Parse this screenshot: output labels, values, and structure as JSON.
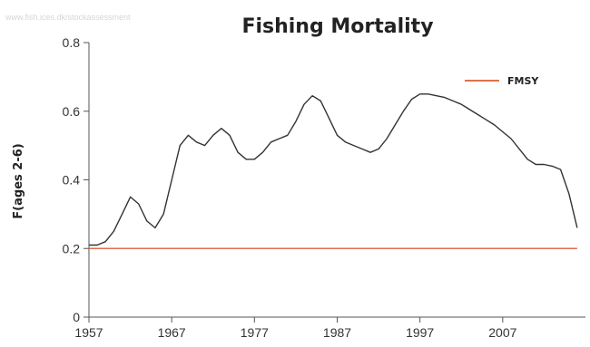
{
  "watermark": "www.fish.ices.dk/stockassessment",
  "chart_data": {
    "type": "line",
    "title": "Fishing Mortality",
    "xlabel": "",
    "ylabel": "F(ages 2-6)",
    "xlim": [
      1957,
      2017
    ],
    "ylim": [
      0,
      0.8
    ],
    "x_ticks": [
      1957,
      1967,
      1977,
      1987,
      1997,
      2007
    ],
    "y_ticks": [
      0,
      0.2,
      0.4,
      0.6,
      0.8
    ],
    "y_tick_labels": [
      "0",
      "0.2",
      "0.4",
      "0.6",
      "0.8"
    ],
    "grid": false,
    "legend_position": "top-right",
    "series": [
      {
        "name": "",
        "color": "#333333",
        "x": [
          1957,
          1958,
          1959,
          1960,
          1961,
          1962,
          1963,
          1964,
          1965,
          1966,
          1967,
          1968,
          1969,
          1970,
          1971,
          1972,
          1973,
          1974,
          1975,
          1976,
          1977,
          1978,
          1979,
          1980,
          1981,
          1982,
          1983,
          1984,
          1985,
          1986,
          1987,
          1988,
          1989,
          1990,
          1991,
          1992,
          1993,
          1994,
          1995,
          1996,
          1997,
          1998,
          1999,
          2000,
          2001,
          2002,
          2003,
          2004,
          2005,
          2006,
          2007,
          2008,
          2009,
          2010,
          2011,
          2012,
          2013,
          2014,
          2015,
          2016
        ],
        "y": [
          0.21,
          0.21,
          0.22,
          0.25,
          0.3,
          0.35,
          0.33,
          0.28,
          0.26,
          0.3,
          0.4,
          0.5,
          0.53,
          0.51,
          0.5,
          0.53,
          0.55,
          0.53,
          0.48,
          0.46,
          0.46,
          0.48,
          0.51,
          0.52,
          0.53,
          0.57,
          0.62,
          0.645,
          0.63,
          0.58,
          0.53,
          0.51,
          0.5,
          0.49,
          0.48,
          0.49,
          0.52,
          0.56,
          0.6,
          0.635,
          0.65,
          0.65,
          0.645,
          0.64,
          0.63,
          0.62,
          0.605,
          0.59,
          0.575,
          0.56,
          0.54,
          0.52,
          0.49,
          0.46,
          0.445,
          0.445,
          0.44,
          0.43,
          0.36,
          0.26
        ]
      },
      {
        "name": "FMSY",
        "color": "#e0704a",
        "x": [
          1957,
          2016
        ],
        "y": [
          0.2,
          0.2
        ]
      }
    ]
  }
}
